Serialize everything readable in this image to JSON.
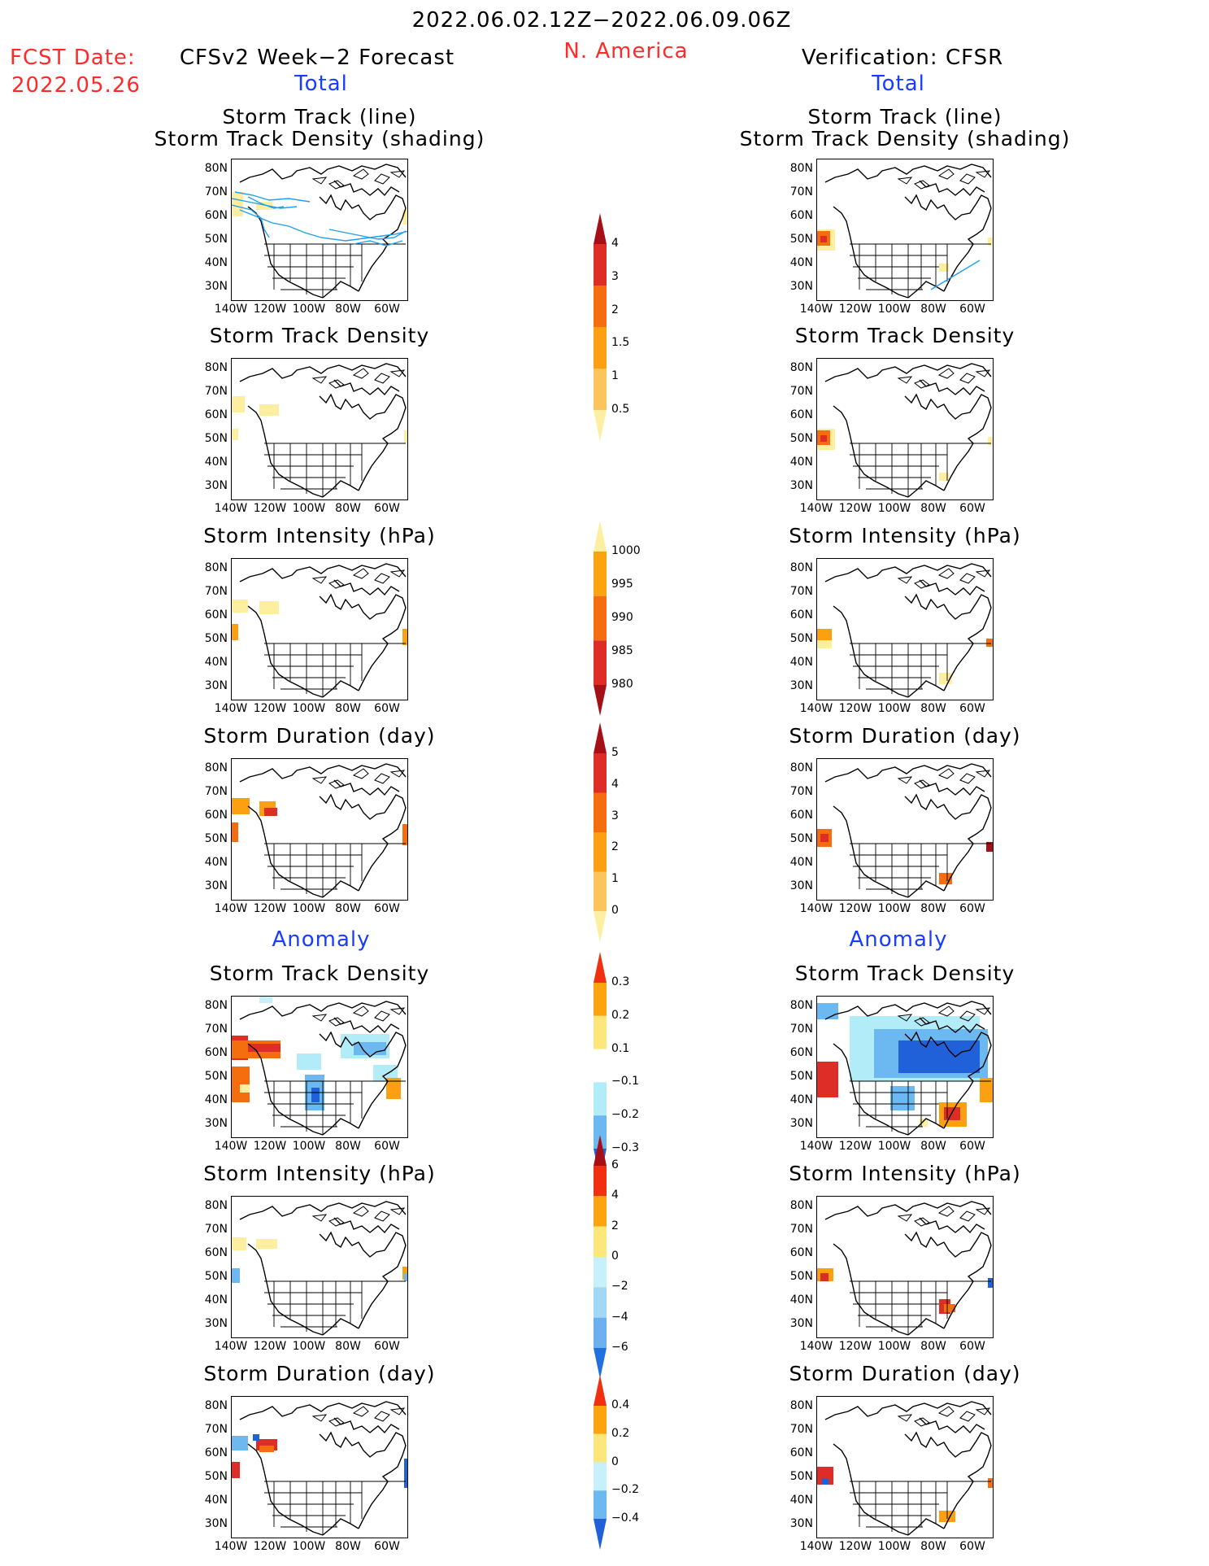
{
  "header": {
    "period": "2022.06.02.12Z−2022.06.09.06Z",
    "fcst_label": "FCST Date:",
    "fcst_date": "2022.05.26",
    "left_title": "CFSv2 Week−2 Forecast",
    "region": "N. America",
    "right_title": "Verification: CFSR",
    "total_label": "Total",
    "anomaly_label": "Anomaly"
  },
  "panel_titles": {
    "track_line": "Storm Track (line)",
    "track_shading": "Storm Track Density (shading)",
    "density": "Storm Track Density",
    "intensity": "Storm Intensity (hPa)",
    "duration": "Storm Duration (day)"
  },
  "lat_labels": [
    "80N",
    "70N",
    "60N",
    "50N",
    "40N",
    "30N"
  ],
  "lon_labels": [
    "140W",
    "120W",
    "100W",
    "80W",
    "60W"
  ],
  "colorbars": [
    {
      "id": "density-total",
      "labels": [
        "4",
        "3",
        "2",
        "1.5",
        "1",
        "0.5"
      ],
      "colors": [
        "#a50f15",
        "#de2d26",
        "#f46d0f",
        "#fc9f10",
        "#fdc45a",
        "#feeea0"
      ]
    },
    {
      "id": "intensity-total",
      "labels": [
        "1000",
        "995",
        "990",
        "985",
        "980"
      ],
      "colors": [
        "#feeea0",
        "#fca410",
        "#f46d0f",
        "#de2d26",
        "#a50f15"
      ]
    },
    {
      "id": "duration-total",
      "labels": [
        "5",
        "4",
        "3",
        "2",
        "1",
        "0"
      ],
      "colors": [
        "#a50f15",
        "#de2d26",
        "#f46d0f",
        "#fc9f10",
        "#fdc45a",
        "#feeea0"
      ]
    },
    {
      "id": "density-anom",
      "labels": [
        "0.3",
        "0.2",
        "0.1",
        "−0.1",
        "−0.2",
        "−0.3"
      ],
      "colors": [
        "#f03010",
        "#fca410",
        "#fde77a",
        "#ffffff",
        "#b2ecf8",
        "#6cb8f0",
        "#2060d8"
      ]
    },
    {
      "id": "intensity-anom",
      "labels": [
        "6",
        "4",
        "2",
        "0",
        "−2",
        "−4",
        "−6"
      ],
      "colors": [
        "#a50f15",
        "#f03010",
        "#fca410",
        "#fde77a",
        "#c8f0fb",
        "#a0d8f5",
        "#6cb0f0",
        "#2070e0"
      ]
    },
    {
      "id": "duration-anom",
      "labels": [
        "0.4",
        "0.2",
        "0",
        "−0.2",
        "−0.4"
      ],
      "colors": [
        "#f03010",
        "#fca410",
        "#fde77a",
        "#c8f0fb",
        "#6cb8f0",
        "#2060d8"
      ]
    }
  ]
}
